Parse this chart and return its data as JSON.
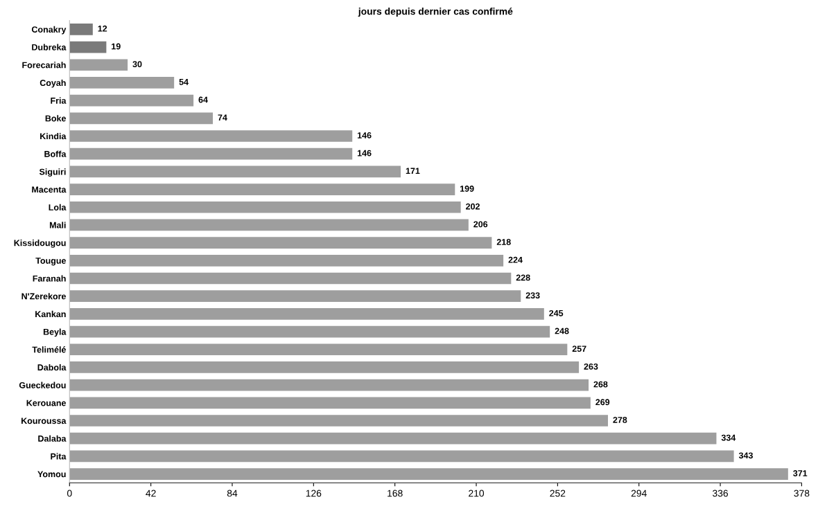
{
  "chart_data": {
    "type": "bar",
    "orientation": "horizontal",
    "title": "jours depuis dernier cas confirmé",
    "categories": [
      "Conakry",
      "Dubreka",
      "Forecariah",
      "Coyah",
      "Fria",
      "Boke",
      "Kindia",
      "Boffa",
      "Siguiri",
      "Macenta",
      "Lola",
      "Mali",
      "Kissidougou",
      "Tougue",
      "Faranah",
      "N'Zerekore",
      "Kankan",
      "Beyla",
      "Telimélé",
      "Dabola",
      "Gueckedou",
      "Kerouane",
      "Kouroussa",
      "Dalaba",
      "Pita",
      "Yomou"
    ],
    "values": [
      12,
      19,
      30,
      54,
      64,
      74,
      146,
      146,
      171,
      199,
      202,
      206,
      218,
      224,
      228,
      233,
      245,
      248,
      257,
      263,
      268,
      269,
      278,
      334,
      343,
      371
    ],
    "colors": [
      "#7a7a7a",
      "#7a7a7a",
      "#9e9e9e",
      "#9e9e9e",
      "#9e9e9e",
      "#9e9e9e",
      "#9e9e9e",
      "#9e9e9e",
      "#9e9e9e",
      "#9e9e9e",
      "#9e9e9e",
      "#9e9e9e",
      "#9e9e9e",
      "#9e9e9e",
      "#9e9e9e",
      "#9e9e9e",
      "#9e9e9e",
      "#9e9e9e",
      "#9e9e9e",
      "#9e9e9e",
      "#9e9e9e",
      "#9e9e9e",
      "#9e9e9e",
      "#9e9e9e",
      "#9e9e9e",
      "#9e9e9e"
    ],
    "xlim": [
      0,
      378
    ],
    "xticks": [
      0,
      42,
      84,
      126,
      168,
      210,
      252,
      294,
      336,
      378
    ],
    "data_labels": true,
    "grid": false,
    "legend": false
  }
}
